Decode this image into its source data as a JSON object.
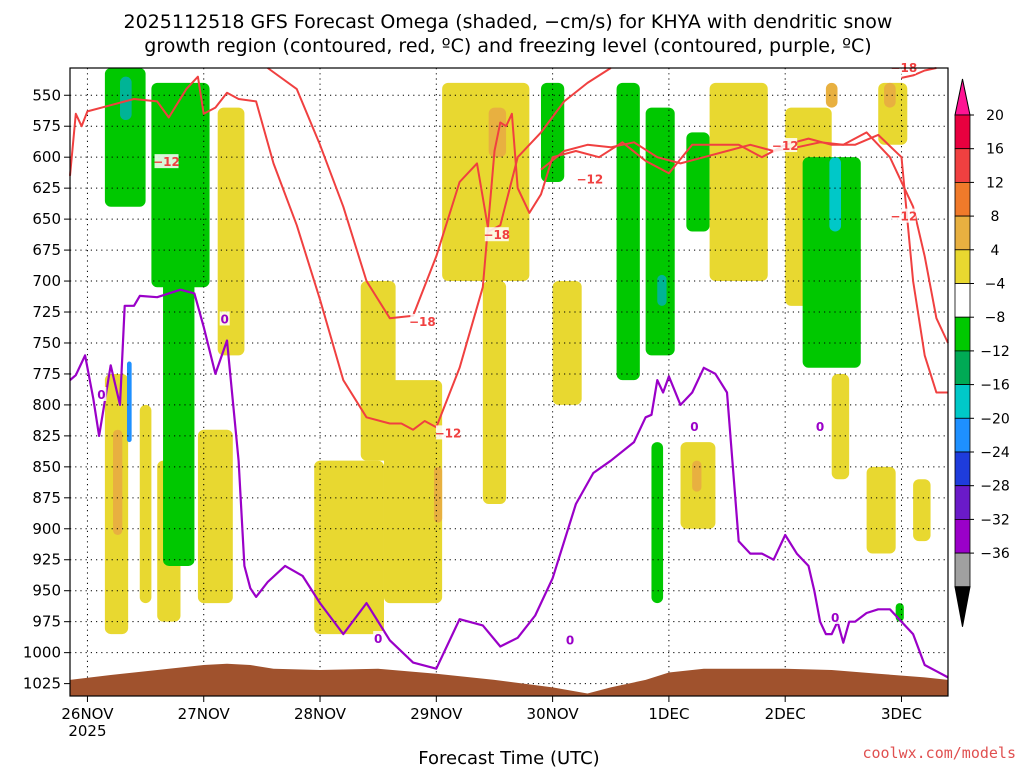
{
  "chart_data": {
    "type": "heatmap",
    "title_line1": "2025112518 GFS Forecast Omega (shaded, −cm/s) for KHYA with dendritic snow",
    "title_line2": "growth region (contoured, red, ºC) and freezing level (contoured, purple, ºC)",
    "xlabel": "Forecast Time (UTC)",
    "credit": "coolwx.com/models",
    "y_axis": {
      "ticks": [
        550,
        575,
        600,
        625,
        650,
        675,
        700,
        725,
        750,
        775,
        800,
        825,
        850,
        875,
        900,
        925,
        950,
        975,
        1000,
        1025
      ],
      "labels": [
        "550",
        "575",
        "600",
        "625",
        "650",
        "675",
        "700",
        "725",
        "750",
        "775",
        "800",
        "825",
        "850",
        "875",
        "900",
        "925",
        "950",
        "975",
        "1000",
        "1025"
      ],
      "range": [
        528,
        1035
      ]
    },
    "x_axis": {
      "range_days": [
        -0.15,
        7.4
      ],
      "ticks": [
        {
          "day": 0,
          "label": "26NOV",
          "sublabel": "2025"
        },
        {
          "day": 1,
          "label": "27NOV",
          "sublabel": ""
        },
        {
          "day": 2,
          "label": "28NOV",
          "sublabel": ""
        },
        {
          "day": 3,
          "label": "29NOV",
          "sublabel": ""
        },
        {
          "day": 4,
          "label": "30NOV",
          "sublabel": ""
        },
        {
          "day": 5,
          "label": "1DEC",
          "sublabel": ""
        },
        {
          "day": 6,
          "label": "2DEC",
          "sublabel": ""
        },
        {
          "day": 7,
          "label": "3DEC",
          "sublabel": ""
        }
      ]
    },
    "colorbar": {
      "labels": [
        "20",
        "16",
        "12",
        "8",
        "4",
        "−4",
        "−8",
        "−12",
        "−16",
        "−20",
        "−24",
        "−28",
        "−32",
        "−36"
      ],
      "colors": [
        "#e8003f",
        "#f04040",
        "#f07a2a",
        "#e8b040",
        "#e8d830",
        "#ffffff",
        "#00c800",
        "#00aa55",
        "#00c8c8",
        "#1e90ff",
        "#1e3cdc",
        "#6a1ac8",
        "#9a00c8",
        "#a0a0a0"
      ],
      "over_color": "#ff1493",
      "under_color": "#000000"
    },
    "shading_colors": {
      "light_yellow": "#e8d830",
      "tan": "#e8b040",
      "orange": "#e08020",
      "green": "#00c800",
      "teal": "#00b496",
      "cyan": "#00c8c8",
      "blue": "#1e90ff",
      "ground": "#a0522d"
    },
    "contour_colors": {
      "dgz": "#f04040",
      "freezing": "#9a00c8"
    },
    "freezing_level_0C": {
      "label": "0",
      "days": [
        -0.15,
        -0.1,
        -0.02,
        0.05,
        0.1,
        0.2,
        0.28,
        0.32,
        0.4,
        0.45,
        0.6,
        0.8,
        0.92,
        1.0,
        1.1,
        1.2,
        1.3,
        1.35,
        1.4,
        1.45,
        1.55,
        1.7,
        1.85,
        2.0,
        2.2,
        2.4,
        2.6,
        2.8,
        3.0,
        3.2,
        3.4,
        3.55,
        3.7,
        3.85,
        4.0,
        4.2,
        4.35,
        4.5,
        4.7,
        4.8,
        4.85,
        4.9,
        4.95,
        5.0,
        5.1,
        5.2,
        5.3,
        5.4,
        5.5,
        5.6,
        5.7,
        5.8,
        5.9,
        6.0,
        6.1,
        6.2,
        6.25,
        6.3,
        6.35,
        6.4,
        6.45,
        6.5,
        6.55,
        6.6,
        6.7,
        6.8,
        6.9,
        7.0,
        7.1,
        7.2,
        7.3,
        7.4
      ],
      "levels": [
        780,
        776,
        760,
        795,
        825,
        768,
        800,
        720,
        720,
        712,
        713,
        707,
        710,
        737,
        775,
        748,
        845,
        930,
        948,
        955,
        943,
        930,
        938,
        960,
        985,
        960,
        990,
        1008,
        1013,
        973,
        978,
        995,
        988,
        970,
        940,
        880,
        855,
        845,
        830,
        810,
        808,
        780,
        790,
        777,
        800,
        790,
        770,
        775,
        790,
        910,
        920,
        920,
        925,
        905,
        920,
        930,
        950,
        975,
        985,
        985,
        975,
        992,
        975,
        975,
        968,
        965,
        965,
        975,
        985,
        1010,
        1015,
        1020
      ]
    },
    "dgz_minus12_contours": [
      {
        "label": "−12",
        "days": [
          -0.15,
          -0.1,
          -0.05,
          0.0,
          0.2,
          0.4,
          0.6,
          0.7,
          0.85,
          0.95,
          1.0,
          1.1,
          1.2,
          1.3,
          1.45,
          1.6,
          1.8,
          2.0,
          2.2,
          2.4,
          2.6,
          2.7,
          2.8,
          2.9,
          3.0,
          3.2,
          3.4,
          3.5,
          3.55,
          3.6,
          3.65,
          3.7,
          3.8,
          3.9,
          4.0,
          4.2,
          4.4,
          4.6,
          4.8,
          5.0,
          5.2,
          5.4,
          5.6,
          5.8,
          6.0,
          6.2,
          6.4,
          6.6,
          6.8,
          7.0,
          7.1,
          7.2,
          7.3,
          7.4
        ],
        "levels": [
          615,
          565,
          575,
          563,
          558,
          553,
          555,
          568,
          545,
          535,
          565,
          560,
          548,
          553,
          555,
          605,
          655,
          715,
          780,
          810,
          815,
          815,
          820,
          813,
          818,
          770,
          705,
          595,
          572,
          575,
          565,
          625,
          645,
          630,
          600,
          595,
          600,
          588,
          603,
          613,
          590,
          590,
          590,
          600,
          590,
          585,
          590,
          590,
          582,
          600,
          700,
          760,
          790,
          790
        ]
      },
      {
        "label": "−12",
        "days": [
          3.9,
          4.1,
          4.3,
          4.5,
          4.7,
          4.9,
          5.1,
          5.3,
          5.5,
          5.7,
          5.9,
          6.1,
          6.3,
          6.5,
          6.7,
          6.9,
          7.1,
          7.2,
          7.3,
          7.4
        ],
        "levels": [
          610,
          595,
          590,
          592,
          588,
          600,
          605,
          600,
          595,
          590,
          595,
          592,
          588,
          590,
          580,
          600,
          640,
          680,
          730,
          750
        ]
      }
    ],
    "dgz_minus18_contours": [
      {
        "label": "−18",
        "days": [
          1.55,
          1.8,
          2.0,
          2.2,
          2.4,
          2.6,
          2.8,
          3.0,
          3.2,
          3.35,
          3.45,
          3.55,
          3.7,
          3.9,
          4.1,
          4.3,
          4.5
        ],
        "levels": [
          528,
          545,
          590,
          640,
          700,
          730,
          728,
          680,
          620,
          605,
          660,
          655,
          600,
          580,
          555,
          540,
          528
        ]
      },
      {
        "label": "−18",
        "days": [
          7.0,
          7.1,
          7.2,
          7.3
        ],
        "levels": [
          536,
          534,
          530,
          528
        ]
      }
    ],
    "contour_label_positions": [
      {
        "text": "−12",
        "day": 0.68,
        "level": 604,
        "color": "#f04040"
      },
      {
        "text": "−18",
        "day": 2.88,
        "level": 733,
        "color": "#f04040"
      },
      {
        "text": "−12",
        "day": 3.1,
        "level": 823,
        "color": "#f04040"
      },
      {
        "text": "−18",
        "day": 3.52,
        "level": 663,
        "color": "#f04040"
      },
      {
        "text": "−12",
        "day": 4.32,
        "level": 618,
        "color": "#f04040"
      },
      {
        "text": "−12",
        "day": 6.0,
        "level": 591,
        "color": "#f04040"
      },
      {
        "text": "−12",
        "day": 7.02,
        "level": 648,
        "color": "#f04040"
      },
      {
        "text": "−18",
        "day": 7.02,
        "level": 528,
        "color": "#f04040"
      },
      {
        "text": "0",
        "day": 0.12,
        "level": 792,
        "color": "#9a00c8"
      },
      {
        "text": "0",
        "day": 1.18,
        "level": 731,
        "color": "#9a00c8"
      },
      {
        "text": "0",
        "day": 2.5,
        "level": 989,
        "color": "#9a00c8"
      },
      {
        "text": "0",
        "day": 4.15,
        "level": 990,
        "color": "#9a00c8"
      },
      {
        "text": "0",
        "day": 5.22,
        "level": 818,
        "color": "#9a00c8"
      },
      {
        "text": "0",
        "day": 6.3,
        "level": 818,
        "color": "#9a00c8"
      },
      {
        "text": "0",
        "day": 6.43,
        "level": 972,
        "color": "#9a00c8"
      }
    ],
    "ground_surface": {
      "days": [
        -0.15,
        0.2,
        0.5,
        0.8,
        1.0,
        1.2,
        1.4,
        1.6,
        2.0,
        2.5,
        3.0,
        3.5,
        4.0,
        4.3,
        4.5,
        4.8,
        5.0,
        5.3,
        5.6,
        6.0,
        6.4,
        6.8,
        7.2,
        7.4
      ],
      "levels": [
        1022,
        1018,
        1015,
        1012,
        1010,
        1009,
        1010,
        1013,
        1014,
        1013,
        1017,
        1022,
        1028,
        1033,
        1028,
        1022,
        1016,
        1013,
        1013,
        1013,
        1014,
        1017,
        1020,
        1022
      ]
    },
    "omega_regions": [
      {
        "color": "light_yellow",
        "d0": 0.15,
        "d1": 0.35,
        "p0": 775,
        "p1": 985
      },
      {
        "color": "tan",
        "d0": 0.22,
        "d1": 0.3,
        "p0": 820,
        "p1": 905
      },
      {
        "color": "light_yellow",
        "d0": 0.45,
        "d1": 0.55,
        "p0": 800,
        "p1": 960
      },
      {
        "color": "light_yellow",
        "d0": 0.6,
        "d1": 0.8,
        "p0": 845,
        "p1": 975
      },
      {
        "color": "light_yellow",
        "d0": 0.95,
        "d1": 1.25,
        "p0": 820,
        "p1": 960
      },
      {
        "color": "green",
        "d0": 0.15,
        "d1": 0.5,
        "p0": 528,
        "p1": 640
      },
      {
        "color": "teal",
        "d0": 0.28,
        "d1": 0.38,
        "p0": 535,
        "p1": 570
      },
      {
        "color": "green",
        "d0": 0.55,
        "d1": 1.05,
        "p0": 540,
        "p1": 705
      },
      {
        "color": "green",
        "d0": 0.65,
        "d1": 0.92,
        "p0": 700,
        "p1": 930
      },
      {
        "color": "light_yellow",
        "d0": 1.12,
        "d1": 1.35,
        "p0": 560,
        "p1": 760
      },
      {
        "color": "blue",
        "d0": 0.34,
        "d1": 0.38,
        "p0": 765,
        "p1": 830
      },
      {
        "color": "light_yellow",
        "d0": 1.95,
        "d1": 2.55,
        "p0": 845,
        "p1": 985
      },
      {
        "color": "light_yellow",
        "d0": 2.55,
        "d1": 3.05,
        "p0": 780,
        "p1": 960
      },
      {
        "color": "light_yellow",
        "d0": 2.35,
        "d1": 2.65,
        "p0": 700,
        "p1": 845
      },
      {
        "color": "tan",
        "d0": 2.98,
        "d1": 3.05,
        "p0": 850,
        "p1": 895
      },
      {
        "color": "light_yellow",
        "d0": 3.05,
        "d1": 3.8,
        "p0": 540,
        "p1": 700
      },
      {
        "color": "tan",
        "d0": 3.45,
        "d1": 3.6,
        "p0": 560,
        "p1": 600
      },
      {
        "color": "light_yellow",
        "d0": 3.4,
        "d1": 3.6,
        "p0": 700,
        "p1": 880
      },
      {
        "color": "light_yellow",
        "d0": 4.0,
        "d1": 4.25,
        "p0": 700,
        "p1": 800
      },
      {
        "color": "green",
        "d0": 3.9,
        "d1": 4.1,
        "p0": 540,
        "p1": 620
      },
      {
        "color": "green",
        "d0": 4.55,
        "d1": 4.75,
        "p0": 540,
        "p1": 780
      },
      {
        "color": "green",
        "d0": 4.8,
        "d1": 5.05,
        "p0": 560,
        "p1": 760
      },
      {
        "color": "teal",
        "d0": 4.9,
        "d1": 4.98,
        "p0": 695,
        "p1": 720
      },
      {
        "color": "green",
        "d0": 5.15,
        "d1": 5.35,
        "p0": 580,
        "p1": 660
      },
      {
        "color": "light_yellow",
        "d0": 5.35,
        "d1": 5.85,
        "p0": 540,
        "p1": 700
      },
      {
        "color": "green",
        "d0": 4.85,
        "d1": 4.95,
        "p0": 830,
        "p1": 960
      },
      {
        "color": "light_yellow",
        "d0": 5.1,
        "d1": 5.4,
        "p0": 830,
        "p1": 900
      },
      {
        "color": "tan",
        "d0": 5.2,
        "d1": 5.28,
        "p0": 845,
        "p1": 870
      },
      {
        "color": "light_yellow",
        "d0": 6.0,
        "d1": 6.4,
        "p0": 560,
        "p1": 720
      },
      {
        "color": "green",
        "d0": 6.15,
        "d1": 6.65,
        "p0": 600,
        "p1": 770
      },
      {
        "color": "cyan",
        "d0": 6.38,
        "d1": 6.48,
        "p0": 600,
        "p1": 660
      },
      {
        "color": "tan",
        "d0": 6.35,
        "d1": 6.45,
        "p0": 540,
        "p1": 560
      },
      {
        "color": "light_yellow",
        "d0": 6.4,
        "d1": 6.55,
        "p0": 775,
        "p1": 860
      },
      {
        "color": "light_yellow",
        "d0": 6.7,
        "d1": 6.95,
        "p0": 850,
        "p1": 920
      },
      {
        "color": "light_yellow",
        "d0": 6.8,
        "d1": 7.05,
        "p0": 540,
        "p1": 590
      },
      {
        "color": "tan",
        "d0": 6.85,
        "d1": 6.95,
        "p0": 540,
        "p1": 560
      },
      {
        "color": "light_yellow",
        "d0": 7.1,
        "d1": 7.25,
        "p0": 860,
        "p1": 910
      },
      {
        "color": "green",
        "d0": 6.95,
        "d1": 7.02,
        "p0": 960,
        "p1": 975
      }
    ]
  }
}
